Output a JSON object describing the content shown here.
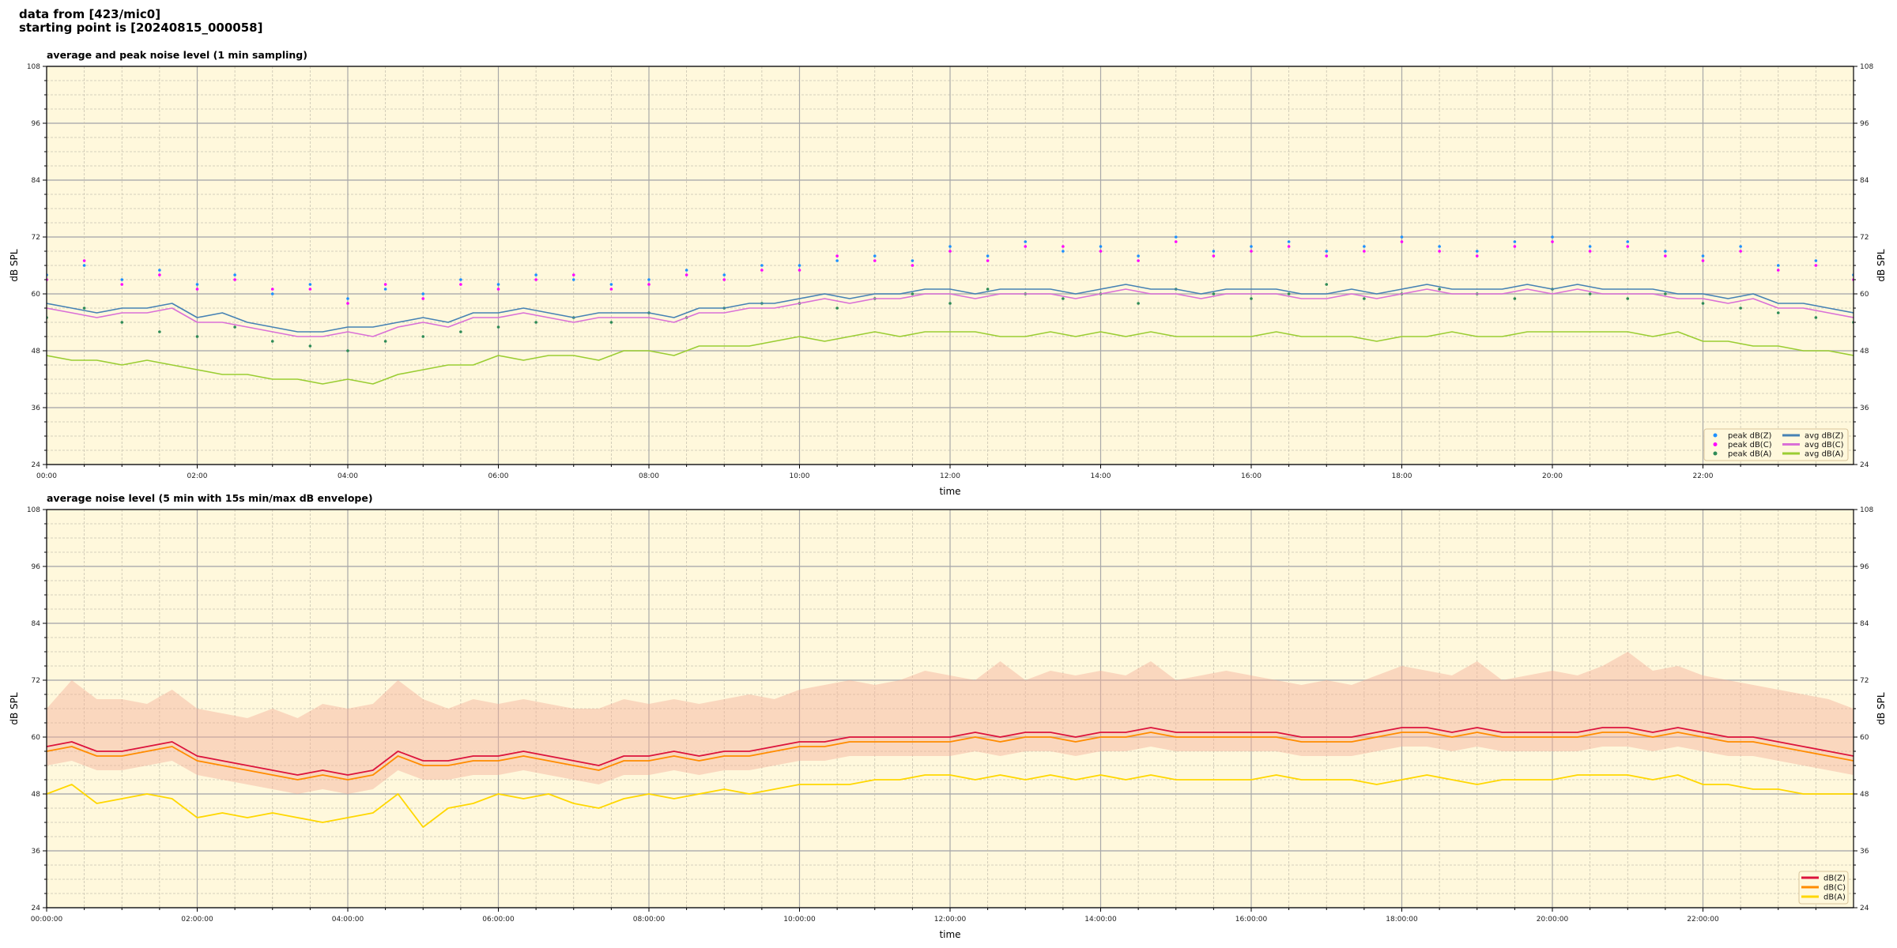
{
  "header": {
    "line1": "data from [423/mic0]",
    "line2": "starting point is [20240815_000058]"
  },
  "background_color": "#fff8dc",
  "chart_data": [
    {
      "type": "line+scatter",
      "title": "average and peak noise level (1 min sampling)",
      "xlabel": "time",
      "ylabel": "dB SPL",
      "ylim": [
        24,
        108
      ],
      "xlim": [
        "00:00",
        "24:00"
      ],
      "yticks": [
        "108",
        "96",
        "84",
        "72",
        "60",
        "48",
        "36",
        "24"
      ],
      "xticks": [
        "00:00",
        "02:00",
        "04:00",
        "06:00",
        "08:00",
        "10:00",
        "12:00",
        "14:00",
        "16:00",
        "18:00",
        "20:00",
        "22:00"
      ],
      "grid": true,
      "legend_position": "bottom-right",
      "x_step_minutes": 20,
      "peak_step_minutes": 30,
      "series": [
        {
          "name": "avg dB(Z)",
          "kind": "line",
          "color": "#4682b4",
          "values": [
            58,
            57,
            56,
            57,
            57,
            58,
            55,
            56,
            54,
            53,
            52,
            52,
            53,
            53,
            54,
            55,
            54,
            56,
            56,
            57,
            56,
            55,
            56,
            56,
            56,
            55,
            57,
            57,
            58,
            58,
            59,
            60,
            59,
            60,
            60,
            61,
            61,
            60,
            61,
            61,
            61,
            60,
            61,
            62,
            61,
            61,
            60,
            61,
            61,
            61,
            60,
            60,
            61,
            60,
            61,
            62,
            61,
            61,
            61,
            62,
            61,
            62,
            61,
            61,
            61,
            60,
            60,
            59,
            60,
            58,
            58,
            57,
            56
          ]
        },
        {
          "name": "avg dB(C)",
          "kind": "line",
          "color": "#da70d6",
          "values": [
            57,
            56,
            55,
            56,
            56,
            57,
            54,
            54,
            53,
            52,
            51,
            51,
            52,
            51,
            53,
            54,
            53,
            55,
            55,
            56,
            55,
            54,
            55,
            55,
            55,
            54,
            56,
            56,
            57,
            57,
            58,
            59,
            58,
            59,
            59,
            60,
            60,
            59,
            60,
            60,
            60,
            59,
            60,
            61,
            60,
            60,
            59,
            60,
            60,
            60,
            59,
            59,
            60,
            59,
            60,
            61,
            60,
            60,
            60,
            61,
            60,
            61,
            60,
            60,
            60,
            59,
            59,
            58,
            59,
            57,
            57,
            56,
            55
          ]
        },
        {
          "name": "avg dB(A)",
          "kind": "line",
          "color": "#9acd32",
          "values": [
            47,
            46,
            46,
            45,
            46,
            45,
            44,
            43,
            43,
            42,
            42,
            41,
            42,
            41,
            43,
            44,
            45,
            45,
            47,
            46,
            47,
            47,
            46,
            48,
            48,
            47,
            49,
            49,
            49,
            50,
            51,
            50,
            51,
            52,
            51,
            52,
            52,
            52,
            51,
            51,
            52,
            51,
            52,
            51,
            52,
            51,
            51,
            51,
            51,
            52,
            51,
            51,
            51,
            50,
            51,
            51,
            52,
            51,
            51,
            52,
            52,
            52,
            52,
            52,
            51,
            52,
            50,
            50,
            49,
            49,
            48,
            48,
            47
          ]
        },
        {
          "name": "peak dB(Z)",
          "kind": "scatter",
          "color": "#1e90ff",
          "values": [
            64,
            66,
            63,
            65,
            62,
            64,
            60,
            62,
            59,
            61,
            60,
            63,
            62,
            64,
            63,
            62,
            63,
            65,
            64,
            66,
            66,
            67,
            68,
            67,
            70,
            68,
            71,
            69,
            70,
            68,
            72,
            69,
            70,
            71,
            69,
            70,
            72,
            70,
            69,
            71,
            72,
            70,
            71,
            69,
            68,
            70,
            66,
            67,
            64
          ]
        },
        {
          "name": "peak dB(C)",
          "kind": "scatter",
          "color": "#ff00ff",
          "values": [
            63,
            67,
            62,
            64,
            61,
            63,
            61,
            61,
            58,
            62,
            59,
            62,
            61,
            63,
            64,
            61,
            62,
            64,
            63,
            65,
            65,
            68,
            67,
            66,
            69,
            67,
            70,
            70,
            69,
            67,
            71,
            68,
            69,
            70,
            68,
            69,
            71,
            69,
            68,
            70,
            71,
            69,
            70,
            68,
            67,
            69,
            65,
            66,
            63
          ]
        },
        {
          "name": "peak dB(A)",
          "kind": "scatter",
          "color": "#2e8b57",
          "values": [
            55,
            57,
            54,
            52,
            51,
            53,
            50,
            49,
            48,
            50,
            51,
            52,
            53,
            54,
            55,
            54,
            56,
            55,
            57,
            58,
            58,
            57,
            59,
            60,
            58,
            61,
            60,
            59,
            60,
            58,
            61,
            60,
            59,
            60,
            62,
            59,
            60,
            61,
            60,
            59,
            61,
            60,
            59,
            60,
            58,
            57,
            56,
            55,
            54
          ]
        }
      ],
      "legend": [
        "peak dB(Z)",
        "peak dB(C)",
        "peak dB(A)",
        "avg dB(Z)",
        "avg dB(C)",
        "avg dB(A)"
      ]
    },
    {
      "type": "line+area",
      "title": "average noise level (5 min with 15s min/max dB envelope)",
      "xlabel": "time",
      "ylabel": "dB SPL",
      "ylim": [
        24,
        108
      ],
      "xlim": [
        "00:00:00",
        "24:00:00"
      ],
      "yticks": [
        "108",
        "96",
        "84",
        "72",
        "60",
        "48",
        "36",
        "24"
      ],
      "xticks": [
        "00:00:00",
        "02:00:00",
        "04:00:00",
        "06:00:00",
        "08:00:00",
        "10:00:00",
        "12:00:00",
        "14:00:00",
        "16:00:00",
        "18:00:00",
        "20:00:00",
        "22:00:00"
      ],
      "grid": true,
      "legend_position": "bottom-right",
      "x_step_minutes": 20,
      "envelope": {
        "color": "#f4b09a",
        "max": [
          66,
          72,
          68,
          68,
          67,
          70,
          66,
          65,
          64,
          66,
          64,
          67,
          66,
          67,
          72,
          68,
          66,
          68,
          67,
          68,
          67,
          66,
          66,
          68,
          67,
          68,
          67,
          68,
          69,
          68,
          70,
          71,
          72,
          71,
          72,
          74,
          73,
          72,
          76,
          72,
          74,
          73,
          74,
          73,
          76,
          72,
          73,
          74,
          73,
          72,
          71,
          72,
          71,
          73,
          75,
          74,
          73,
          76,
          72,
          73,
          74,
          73,
          75,
          78,
          74,
          75,
          73,
          72,
          71,
          70,
          69,
          68,
          66
        ],
        "min": [
          54,
          55,
          53,
          53,
          54,
          55,
          52,
          51,
          50,
          49,
          48,
          49,
          48,
          49,
          53,
          51,
          51,
          52,
          52,
          53,
          52,
          51,
          50,
          52,
          52,
          53,
          52,
          53,
          53,
          54,
          55,
          55,
          56,
          56,
          56,
          56,
          56,
          57,
          56,
          57,
          57,
          56,
          57,
          57,
          58,
          57,
          57,
          57,
          57,
          57,
          56,
          56,
          56,
          57,
          58,
          58,
          57,
          58,
          57,
          57,
          57,
          57,
          58,
          58,
          57,
          58,
          57,
          56,
          56,
          55,
          54,
          53,
          52
        ]
      },
      "series": [
        {
          "name": "dB(Z)",
          "color": "#dc143c",
          "values": [
            58,
            59,
            57,
            57,
            58,
            59,
            56,
            55,
            54,
            53,
            52,
            53,
            52,
            53,
            57,
            55,
            55,
            56,
            56,
            57,
            56,
            55,
            54,
            56,
            56,
            57,
            56,
            57,
            57,
            58,
            59,
            59,
            60,
            60,
            60,
            60,
            60,
            61,
            60,
            61,
            61,
            60,
            61,
            61,
            62,
            61,
            61,
            61,
            61,
            61,
            60,
            60,
            60,
            61,
            62,
            62,
            61,
            62,
            61,
            61,
            61,
            61,
            62,
            62,
            61,
            62,
            61,
            60,
            60,
            59,
            58,
            57,
            56
          ]
        },
        {
          "name": "dB(C)",
          "color": "#ff8c00",
          "values": [
            57,
            58,
            56,
            56,
            57,
            58,
            55,
            54,
            53,
            52,
            51,
            52,
            51,
            52,
            56,
            54,
            54,
            55,
            55,
            56,
            55,
            54,
            53,
            55,
            55,
            56,
            55,
            56,
            56,
            57,
            58,
            58,
            59,
            59,
            59,
            59,
            59,
            60,
            59,
            60,
            60,
            59,
            60,
            60,
            61,
            60,
            60,
            60,
            60,
            60,
            59,
            59,
            59,
            60,
            61,
            61,
            60,
            61,
            60,
            60,
            60,
            60,
            61,
            61,
            60,
            61,
            60,
            59,
            59,
            58,
            57,
            56,
            55
          ]
        },
        {
          "name": "dB(A)",
          "color": "#ffd700",
          "values": [
            48,
            50,
            46,
            47,
            48,
            47,
            43,
            44,
            43,
            44,
            43,
            42,
            43,
            44,
            48,
            41,
            45,
            46,
            48,
            47,
            48,
            46,
            45,
            47,
            48,
            47,
            48,
            49,
            48,
            49,
            50,
            50,
            50,
            51,
            51,
            52,
            52,
            51,
            52,
            51,
            52,
            51,
            52,
            51,
            52,
            51,
            51,
            51,
            51,
            52,
            51,
            51,
            51,
            50,
            51,
            52,
            51,
            50,
            51,
            51,
            51,
            52,
            52,
            52,
            51,
            52,
            50,
            50,
            49,
            49,
            48,
            48,
            48
          ]
        }
      ],
      "legend": [
        "dB(Z)",
        "dB(C)",
        "dB(A)"
      ]
    }
  ]
}
